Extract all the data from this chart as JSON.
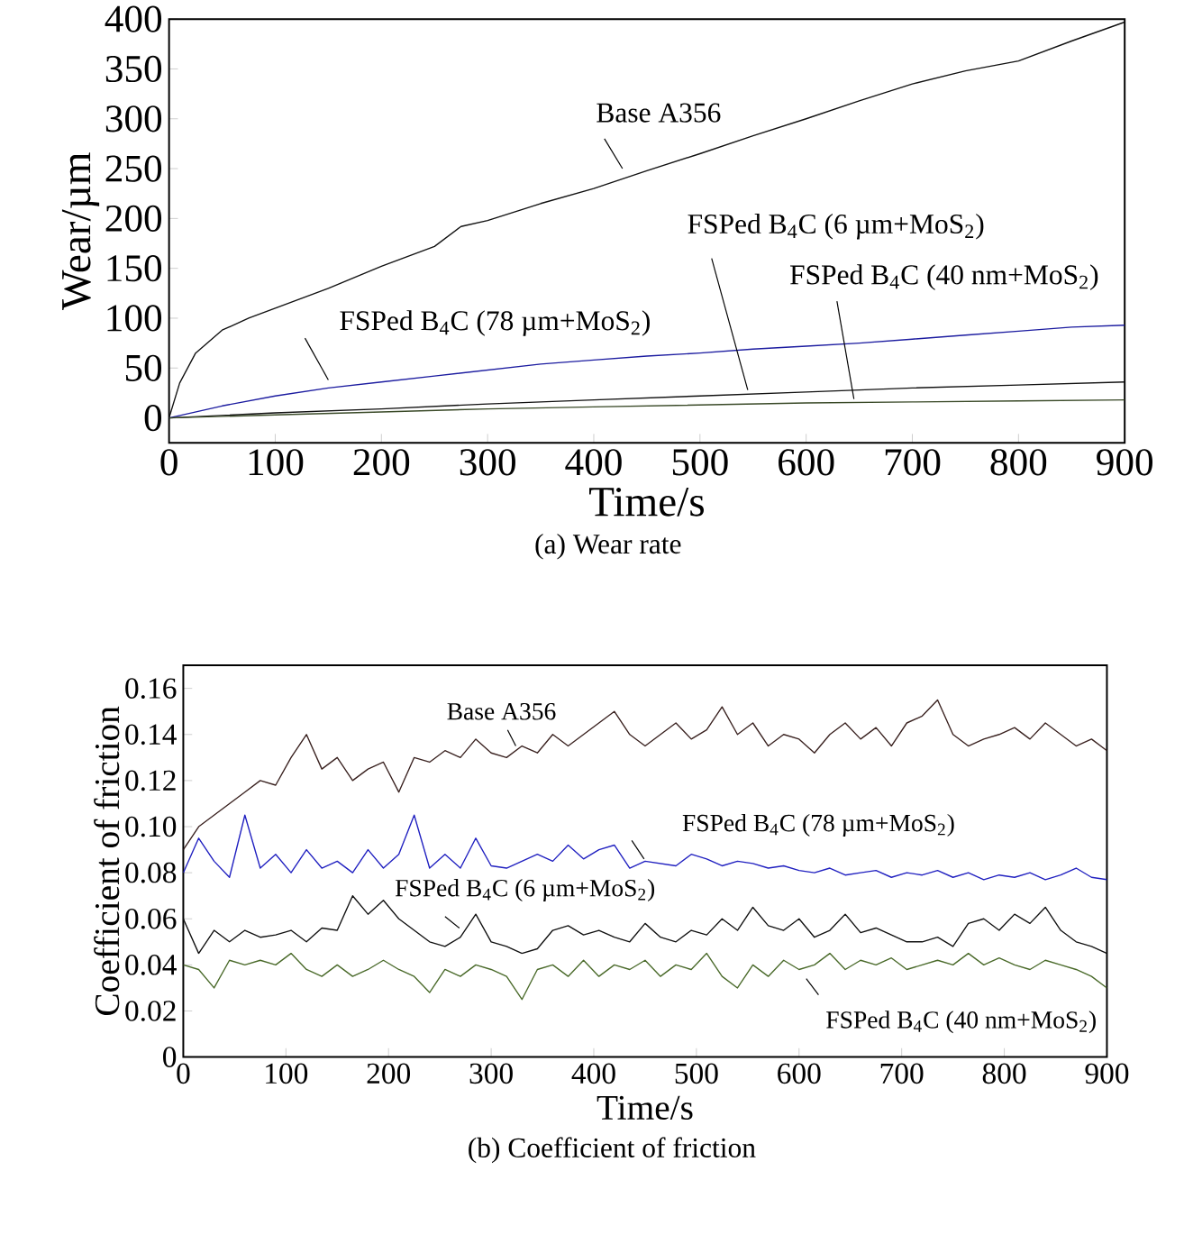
{
  "chart_data": [
    {
      "type": "line",
      "title": "(a)  Wear rate",
      "xlabel": "Time/s",
      "ylabel": "Wear/µm",
      "xlim": [
        0,
        900
      ],
      "ylim": [
        -25,
        400
      ],
      "xticks": [
        0,
        100,
        200,
        300,
        400,
        500,
        600,
        700,
        800,
        900
      ],
      "yticks": [
        0,
        50,
        100,
        150,
        200,
        250,
        300,
        350,
        400
      ],
      "series": [
        {
          "name": "Base A356",
          "color": "#111111",
          "x": [
            0,
            10,
            25,
            50,
            75,
            100,
            150,
            200,
            250,
            275,
            300,
            350,
            400,
            450,
            500,
            550,
            600,
            650,
            700,
            750,
            800,
            850,
            900
          ],
          "values": [
            0,
            35,
            65,
            88,
            100,
            110,
            130,
            152,
            172,
            192,
            198,
            215,
            230,
            248,
            265,
            283,
            300,
            318,
            335,
            348,
            358,
            378,
            397
          ]
        },
        {
          "name": "FSPed B$_{4}$C (78 µm+MoS$_{2}$)",
          "color": "#1c1ca0",
          "x": [
            0,
            50,
            100,
            150,
            200,
            250,
            300,
            350,
            400,
            450,
            500,
            550,
            600,
            650,
            700,
            750,
            800,
            850,
            900
          ],
          "values": [
            0,
            12,
            22,
            30,
            36,
            42,
            48,
            54,
            58,
            62,
            65,
            69,
            72,
            75,
            79,
            83,
            87,
            91,
            93
          ]
        },
        {
          "name": "FSPed B$_{4}$C (6 µm+MoS$_{2}$)",
          "color": "#111111",
          "x": [
            0,
            100,
            200,
            300,
            400,
            500,
            600,
            700,
            800,
            900
          ],
          "values": [
            0,
            5,
            9,
            14,
            18,
            22,
            26,
            30,
            33,
            36
          ]
        },
        {
          "name": "FSPed B$_{4}$C (40 nm+MoS$_{2}$)",
          "color": "#3a4a28",
          "x": [
            0,
            100,
            200,
            300,
            400,
            500,
            600,
            700,
            800,
            900
          ],
          "values": [
            0,
            3,
            6,
            9,
            11,
            13,
            15,
            16,
            17,
            18
          ]
        }
      ]
    },
    {
      "type": "line",
      "title": "(b) Coefficient of friction",
      "xlabel": "Time/s",
      "ylabel": "Coefficient of friction",
      "xlim": [
        0,
        900
      ],
      "ylim": [
        0,
        0.17
      ],
      "xticks": [
        0,
        100,
        200,
        300,
        400,
        500,
        600,
        700,
        800,
        900
      ],
      "yticks": [
        0,
        0.02,
        0.04,
        0.06,
        0.08,
        {
          "value": 0.1,
          "label": "0.10"
        },
        0.12,
        0.14,
        0.16
      ],
      "series": [
        {
          "name": "Base A356",
          "color": "#3a2220",
          "x": [
            0,
            15,
            30,
            45,
            60,
            75,
            90,
            105,
            120,
            135,
            150,
            165,
            180,
            195,
            210,
            225,
            240,
            255,
            270,
            285,
            300,
            315,
            330,
            345,
            360,
            375,
            390,
            405,
            420,
            435,
            450,
            465,
            480,
            495,
            510,
            525,
            540,
            555,
            570,
            585,
            600,
            615,
            630,
            645,
            660,
            675,
            690,
            705,
            720,
            735,
            750,
            765,
            780,
            795,
            810,
            825,
            840,
            855,
            870,
            885,
            900
          ],
          "values": [
            0.09,
            0.1,
            0.105,
            0.11,
            0.115,
            0.12,
            0.118,
            0.13,
            0.14,
            0.125,
            0.13,
            0.12,
            0.125,
            0.128,
            0.115,
            0.13,
            0.128,
            0.133,
            0.13,
            0.138,
            0.132,
            0.13,
            0.135,
            0.132,
            0.14,
            0.135,
            0.14,
            0.145,
            0.15,
            0.14,
            0.135,
            0.14,
            0.145,
            0.138,
            0.142,
            0.152,
            0.14,
            0.145,
            0.135,
            0.14,
            0.138,
            0.132,
            0.14,
            0.145,
            0.138,
            0.143,
            0.135,
            0.145,
            0.148,
            0.155,
            0.14,
            0.135,
            0.138,
            0.14,
            0.143,
            0.138,
            0.145,
            0.14,
            0.135,
            0.138,
            0.133
          ]
        },
        {
          "name": "FSPed B$_{4}$C (78 µm+MoS$_{2}$)",
          "color": "#2020c0",
          "x": [
            0,
            15,
            30,
            45,
            60,
            75,
            90,
            105,
            120,
            135,
            150,
            165,
            180,
            195,
            210,
            225,
            240,
            255,
            270,
            285,
            300,
            315,
            330,
            345,
            360,
            375,
            390,
            405,
            420,
            435,
            450,
            465,
            480,
            495,
            510,
            525,
            540,
            555,
            570,
            585,
            600,
            615,
            630,
            645,
            660,
            675,
            690,
            705,
            720,
            735,
            750,
            765,
            780,
            795,
            810,
            825,
            840,
            855,
            870,
            885,
            900
          ],
          "values": [
            0.08,
            0.095,
            0.085,
            0.078,
            0.105,
            0.082,
            0.088,
            0.08,
            0.09,
            0.082,
            0.085,
            0.08,
            0.09,
            0.082,
            0.088,
            0.105,
            0.082,
            0.088,
            0.082,
            0.095,
            0.083,
            0.082,
            0.085,
            0.088,
            0.085,
            0.092,
            0.086,
            0.09,
            0.092,
            0.082,
            0.085,
            0.084,
            0.083,
            0.088,
            0.086,
            0.083,
            0.085,
            0.084,
            0.082,
            0.083,
            0.081,
            0.08,
            0.082,
            0.079,
            0.08,
            0.081,
            0.078,
            0.08,
            0.079,
            0.081,
            0.078,
            0.08,
            0.077,
            0.079,
            0.078,
            0.08,
            0.077,
            0.079,
            0.082,
            0.078,
            0.077
          ]
        },
        {
          "name": "FSPed B$_{4}$C (6 µm+MoS$_{2}$)",
          "color": "#111111",
          "x": [
            0,
            15,
            30,
            45,
            60,
            75,
            90,
            105,
            120,
            135,
            150,
            165,
            180,
            195,
            210,
            225,
            240,
            255,
            270,
            285,
            300,
            315,
            330,
            345,
            360,
            375,
            390,
            405,
            420,
            435,
            450,
            465,
            480,
            495,
            510,
            525,
            540,
            555,
            570,
            585,
            600,
            615,
            630,
            645,
            660,
            675,
            690,
            705,
            720,
            735,
            750,
            765,
            780,
            795,
            810,
            825,
            840,
            855,
            870,
            885,
            900
          ],
          "values": [
            0.06,
            0.045,
            0.055,
            0.05,
            0.055,
            0.052,
            0.053,
            0.055,
            0.05,
            0.056,
            0.055,
            0.07,
            0.062,
            0.068,
            0.06,
            0.055,
            0.05,
            0.048,
            0.052,
            0.062,
            0.05,
            0.048,
            0.045,
            0.047,
            0.055,
            0.057,
            0.053,
            0.055,
            0.052,
            0.05,
            0.058,
            0.052,
            0.05,
            0.055,
            0.053,
            0.06,
            0.055,
            0.065,
            0.057,
            0.055,
            0.06,
            0.052,
            0.055,
            0.062,
            0.054,
            0.056,
            0.053,
            0.05,
            0.05,
            0.052,
            0.048,
            0.058,
            0.06,
            0.055,
            0.062,
            0.058,
            0.065,
            0.055,
            0.05,
            0.048,
            0.045
          ]
        },
        {
          "name": "FSPed B$_{4}$C (40 nm+MoS$_{2}$)",
          "color": "#4a6a2a",
          "x": [
            0,
            15,
            30,
            45,
            60,
            75,
            90,
            105,
            120,
            135,
            150,
            165,
            180,
            195,
            210,
            225,
            240,
            255,
            270,
            285,
            300,
            315,
            330,
            345,
            360,
            375,
            390,
            405,
            420,
            435,
            450,
            465,
            480,
            495,
            510,
            525,
            540,
            555,
            570,
            585,
            600,
            615,
            630,
            645,
            660,
            675,
            690,
            705,
            720,
            735,
            750,
            765,
            780,
            795,
            810,
            825,
            840,
            855,
            870,
            885,
            900
          ],
          "values": [
            0.04,
            0.038,
            0.03,
            0.042,
            0.04,
            0.042,
            0.04,
            0.045,
            0.038,
            0.035,
            0.04,
            0.035,
            0.038,
            0.042,
            0.038,
            0.035,
            0.028,
            0.038,
            0.035,
            0.04,
            0.038,
            0.035,
            0.025,
            0.038,
            0.04,
            0.035,
            0.042,
            0.035,
            0.04,
            0.038,
            0.042,
            0.035,
            0.04,
            0.038,
            0.045,
            0.035,
            0.03,
            0.04,
            0.035,
            0.042,
            0.038,
            0.04,
            0.045,
            0.038,
            0.042,
            0.04,
            0.043,
            0.038,
            0.04,
            0.042,
            0.04,
            0.045,
            0.04,
            0.043,
            0.04,
            0.038,
            0.042,
            0.04,
            0.038,
            0.035,
            0.03
          ]
        }
      ]
    }
  ]
}
